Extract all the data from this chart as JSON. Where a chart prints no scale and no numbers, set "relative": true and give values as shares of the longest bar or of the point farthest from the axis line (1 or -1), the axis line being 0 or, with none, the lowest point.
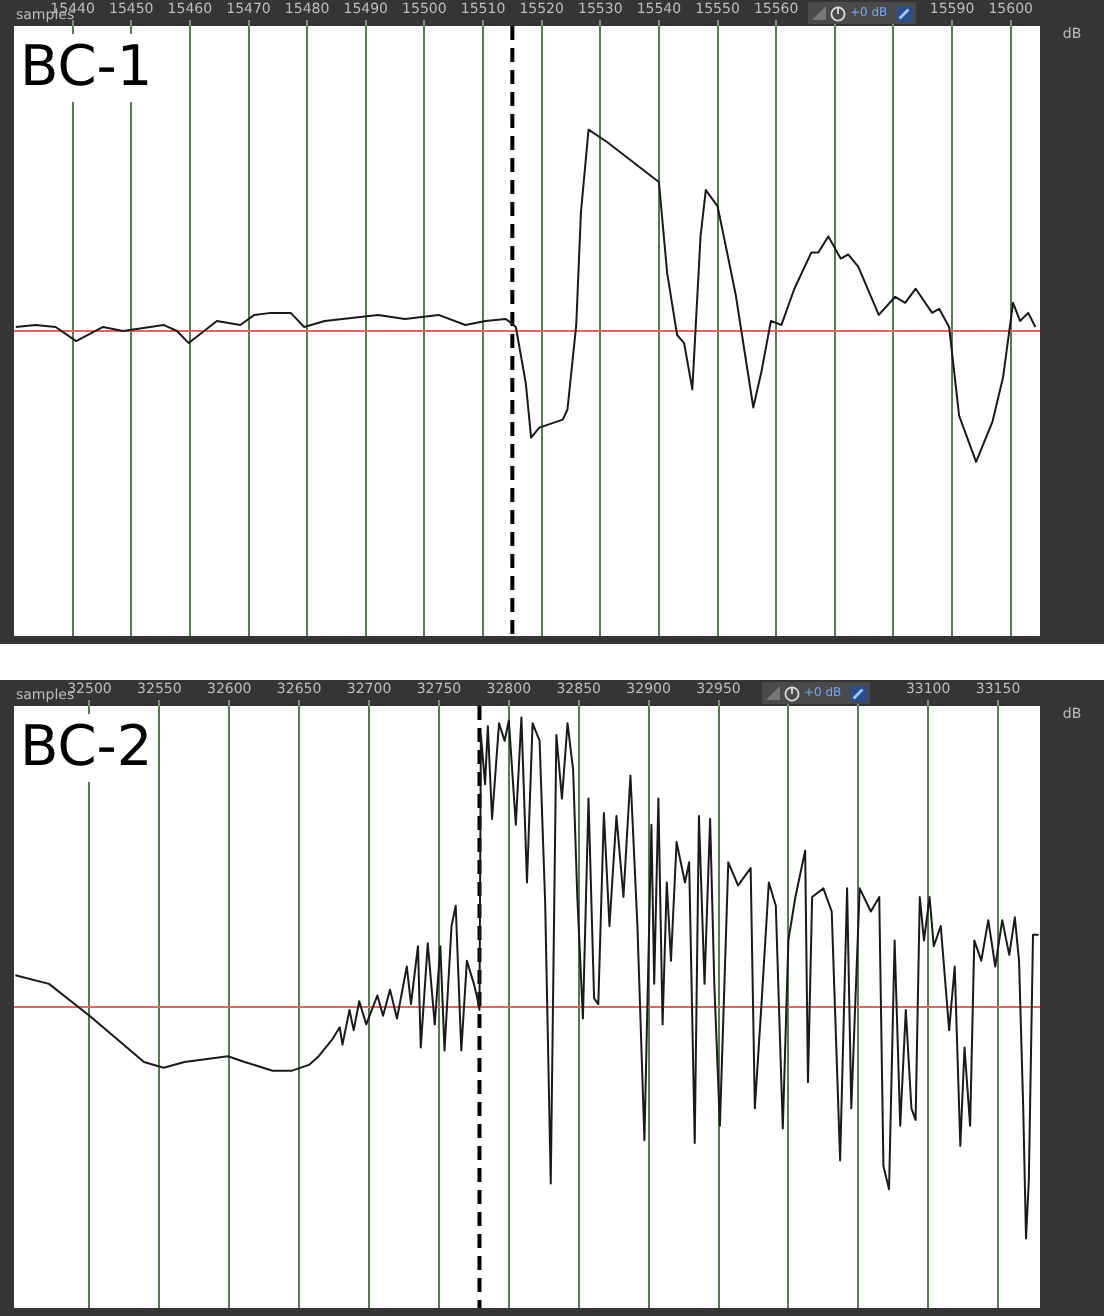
{
  "chart_data": [
    {
      "type": "line",
      "title": "BC-1",
      "xlabel": "samples",
      "ylabel": "dB",
      "annotations": [
        "+0 dB"
      ],
      "xlim": [
        15430,
        15605
      ],
      "xticks": [
        15440,
        15450,
        15460,
        15470,
        15480,
        15490,
        15500,
        15510,
        15520,
        15530,
        15540,
        15550,
        15560,
        {
          "value": 15570,
          "label": null
        },
        {
          "value": 15580,
          "label": null
        },
        15590,
        15600
      ],
      "relative": true,
      "grid": "x",
      "marker": "none",
      "line_style": "solid",
      "ref_lines": [
        {
          "axis": "y",
          "value": 0,
          "color": "#e06666",
          "line_style": "solid"
        },
        {
          "axis": "x",
          "value": 15515,
          "color": "#000000",
          "line_style": "dashed"
        }
      ],
      "series": [
        {
          "color": "#1a1a1a",
          "x": [
            15430.3,
            15433.7,
            15437.1,
            15440.6,
            15445.2,
            15448.6,
            15455.5,
            15457.8,
            15459.8,
            15464.6,
            15468.6,
            15471,
            15473.8,
            15477.2,
            15479.5,
            15483,
            15492.1,
            15496.7,
            15502.4,
            15507,
            15510.4,
            15513.9,
            15515.6,
            15517.3,
            15518.2,
            15519.6,
            15523.6,
            15524.4,
            15525.9,
            15526.7,
            15528,
            15531.1,
            15539.1,
            15540,
            15541.4,
            15543.1,
            15544.3,
            15545.7,
            15547.1,
            15548,
            15550,
            15551.7,
            15553.1,
            15556.1,
            15557.5,
            15559.1,
            15560.9,
            15563.1,
            15566,
            15567.2,
            15568.9,
            15571,
            15572.3,
            15574,
            15577.5,
            15580.3,
            15582,
            15583.8,
            15586.6,
            15587.8,
            15589.5,
            15591.2,
            15594.1,
            15596.9,
            15598.7,
            15600.4,
            15601.6,
            15603,
            15604.2
          ],
          "values": [
            0.02,
            0.03,
            0.02,
            -0.05,
            0.02,
            0,
            0.03,
            0,
            -0.06,
            0.05,
            0.03,
            0.08,
            0.09,
            0.09,
            0.02,
            0.05,
            0.08,
            0.06,
            0.08,
            0.03,
            0.05,
            0.06,
            0.02,
            -0.26,
            -0.53,
            -0.48,
            -0.44,
            -0.39,
            0.03,
            0.59,
            1,
            0.94,
            0.76,
            0.74,
            0.29,
            -0.02,
            -0.06,
            -0.29,
            0.47,
            0.7,
            0.62,
            0.38,
            0.18,
            -0.38,
            -0.2,
            0.05,
            0.03,
            0.21,
            0.39,
            0.39,
            0.47,
            0.36,
            0.38,
            0.32,
            0.08,
            0.17,
            0.14,
            0.21,
            0.09,
            0.11,
            0.02,
            -0.42,
            -0.65,
            -0.45,
            -0.23,
            0.14,
            0.05,
            0.09,
            0.02
          ]
        }
      ]
    },
    {
      "type": "line",
      "title": "BC-2",
      "xlabel": "samples",
      "ylabel": "dB",
      "annotations": [
        "+0 dB"
      ],
      "xlim": [
        32446,
        33180
      ],
      "xticks": [
        32500,
        32550,
        32600,
        32650,
        32700,
        32750,
        32800,
        32850,
        32900,
        32950,
        {
          "value": 33000,
          "label": null
        },
        {
          "value": 33050,
          "label": null
        },
        33100,
        33150
      ],
      "relative": true,
      "grid": "x",
      "marker": "none",
      "line_style": "solid",
      "ref_lines": [
        {
          "axis": "y",
          "value": 0,
          "color": "#e06666",
          "line_style": "solid"
        },
        {
          "axis": "x",
          "value": 32779,
          "color": "#000000",
          "line_style": "dashed"
        }
      ],
      "series": [
        {
          "color": "#1a1a1a",
          "x": [
            32447,
            32471,
            32500,
            32539,
            32553,
            32568,
            32599,
            32611,
            32631,
            32645,
            32657,
            32664,
            32674,
            32679,
            32681,
            32686,
            32689,
            32693,
            32698,
            32706,
            32710,
            32715,
            32720,
            32727,
            32730,
            32735,
            32737,
            32742,
            32747,
            32751,
            32754,
            32759,
            32762,
            32766,
            32770,
            32775,
            32777,
            32779,
            32780,
            32783,
            32785,
            32788,
            32793,
            32797,
            32800,
            32805,
            32809,
            32813,
            32817,
            32822,
            32826,
            32830,
            32834,
            32838,
            32842,
            32846,
            32849,
            32853,
            32857,
            32861,
            32864,
            32868,
            32872,
            32877,
            32882,
            32887,
            32892,
            32897,
            32902,
            32904,
            32907,
            32910,
            32913,
            32916,
            32920,
            32926,
            32929,
            32933,
            32936,
            32940,
            32944,
            32947,
            32951,
            32957,
            32964,
            32973,
            32976,
            32981,
            32986,
            32991,
            32996,
            33000,
            33005,
            33012,
            33014,
            33017,
            33025,
            33031,
            33037,
            33042,
            33045,
            33051,
            33059,
            33065,
            33068,
            33072,
            33076,
            33080,
            33084,
            33088,
            33091,
            33094,
            33097,
            33101,
            33104,
            33109,
            33115,
            33119,
            33123,
            33126,
            33130,
            33133,
            33138,
            33143,
            33148,
            33153,
            33158,
            33162,
            33165,
            33168,
            33170,
            33172,
            33175,
            33179
          ],
          "values": [
            0.11,
            0.08,
            -0.03,
            -0.19,
            -0.21,
            -0.19,
            -0.17,
            -0.19,
            -0.22,
            -0.22,
            -0.2,
            -0.17,
            -0.11,
            -0.07,
            -0.13,
            -0.01,
            -0.08,
            0.02,
            -0.06,
            0.04,
            -0.03,
            0.06,
            -0.04,
            0.14,
            0.01,
            0.21,
            -0.14,
            0.22,
            -0.06,
            0.21,
            -0.15,
            0.28,
            0.35,
            -0.15,
            0.16,
            0.08,
            0.04,
            -0.01,
            0.94,
            0.77,
            0.97,
            0.65,
            0.98,
            0.92,
            0.99,
            0.63,
            1,
            0.43,
            0.98,
            0.92,
            0.36,
            -0.61,
            0.94,
            0.72,
            0.98,
            0.82,
            0.38,
            -0.04,
            0.72,
            0.03,
            0.01,
            0.67,
            0.28,
            0.66,
            0.38,
            0.8,
            0.28,
            -0.46,
            0.63,
            0.08,
            0.72,
            -0.06,
            0.43,
            0.16,
            0.57,
            0.43,
            0.5,
            -0.47,
            0.66,
            0.08,
            0.65,
            0.08,
            -0.41,
            0.5,
            0.42,
            0.48,
            -0.35,
            0.03,
            0.43,
            0.35,
            -0.42,
            0.23,
            0.38,
            0.54,
            -0.26,
            0.38,
            0.41,
            0.33,
            -0.53,
            0.41,
            -0.35,
            0.41,
            0.33,
            0.38,
            -0.55,
            -0.63,
            0.23,
            -0.41,
            -0.01,
            -0.35,
            -0.39,
            0.38,
            0.23,
            0.38,
            0.21,
            0.28,
            -0.08,
            0.14,
            -0.48,
            -0.14,
            -0.41,
            0.23,
            0.16,
            0.3,
            0.14,
            0.3,
            0.18,
            0.31,
            0.16,
            -0.35,
            -0.8,
            -0.6,
            0.25,
            0.25
          ]
        }
      ]
    }
  ]
}
